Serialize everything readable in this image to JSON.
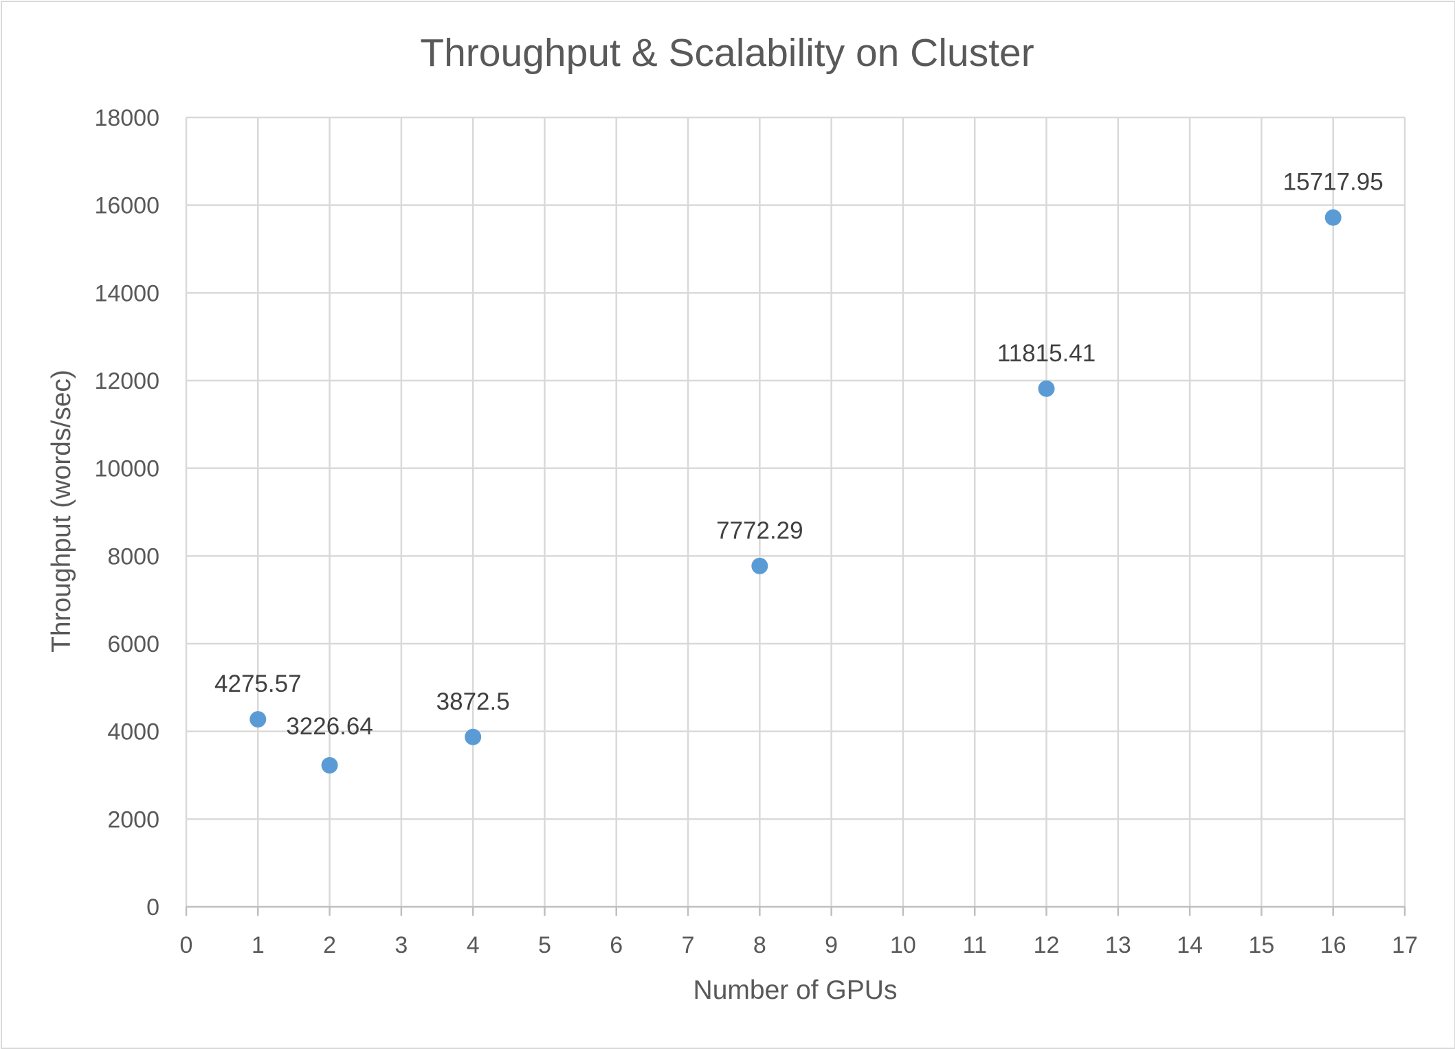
{
  "chart_data": {
    "type": "scatter",
    "title": "Throughput & Scalability on Cluster",
    "xlabel": "Number of GPUs",
    "ylabel": "Throughput (words/sec)",
    "xlim": [
      0,
      17
    ],
    "ylim": [
      0,
      18000
    ],
    "x_ticks": [
      "0",
      "1",
      "2",
      "3",
      "4",
      "5",
      "6",
      "7",
      "8",
      "9",
      "10",
      "11",
      "12",
      "13",
      "14",
      "15",
      "16",
      "17"
    ],
    "y_ticks": [
      "0",
      "2000",
      "4000",
      "6000",
      "8000",
      "10000",
      "12000",
      "14000",
      "16000",
      "18000"
    ],
    "grid": true,
    "legend": "none",
    "marker_color": "#5b9bd5",
    "series": [
      {
        "points": [
          {
            "x": 1,
            "y": 4275.57,
            "label": "4275.57"
          },
          {
            "x": 2,
            "y": 3226.64,
            "label": "3226.64"
          },
          {
            "x": 4,
            "y": 3872.5,
            "label": "3872.5"
          },
          {
            "x": 8,
            "y": 7772.29,
            "label": "7772.29"
          },
          {
            "x": 12,
            "y": 11815.41,
            "label": "11815.41"
          },
          {
            "x": 16,
            "y": 15717.95,
            "label": "15717.95"
          }
        ]
      }
    ]
  }
}
